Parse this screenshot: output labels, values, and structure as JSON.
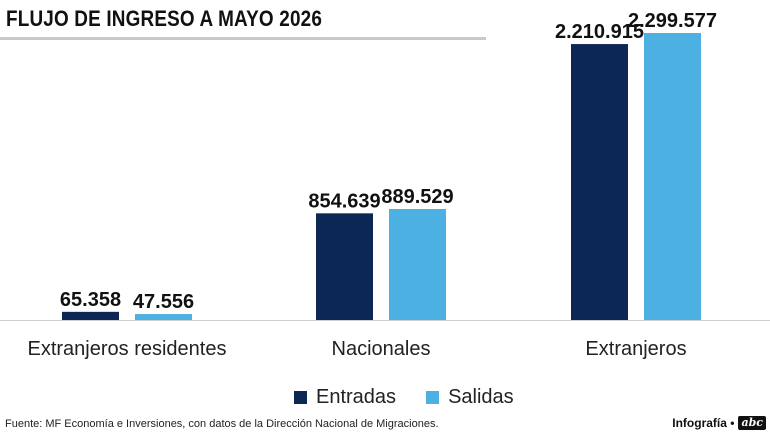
{
  "header": {
    "title": "FLUJO DE INGRESO A MAYO 2026"
  },
  "chart_data": {
    "type": "bar",
    "title": "FLUJO DE INGRESO A MAYO 2026",
    "categories": [
      "Extranjeros residentes",
      "Nacionales",
      "Extranjeros"
    ],
    "series": [
      {
        "name": "Entradas",
        "color": "#0d2755",
        "values": [
          65358,
          854639,
          2210915
        ],
        "labels": [
          "65.358",
          "854.639",
          "2.210.915"
        ]
      },
      {
        "name": "Salidas",
        "color": "#4cb0e2",
        "values": [
          47556,
          889529,
          2299577
        ],
        "labels": [
          "47.556",
          "889.529",
          "2.299.577"
        ]
      }
    ],
    "ylim": [
      0,
      2299577
    ],
    "grid": false,
    "legend": "bottom-center"
  },
  "footer": {
    "source": "Fuente: MF Economía e Inversiones, con datos de la Dirección Nacional de Migraciones.",
    "credit": "Infografía •",
    "logo": "abc"
  }
}
